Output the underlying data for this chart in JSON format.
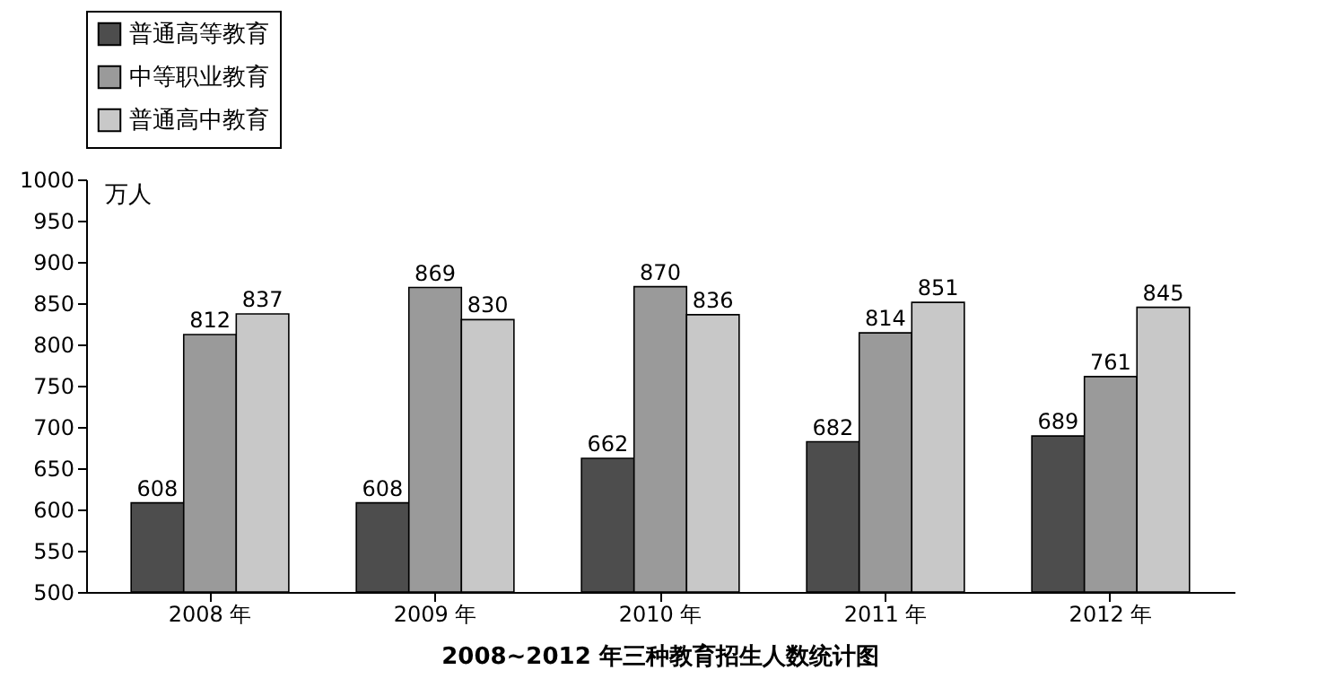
{
  "chart_data": {
    "type": "bar",
    "title": "2008~2012 年三种教育招生人数统计图",
    "ylabel": "万人",
    "categories": [
      "2008 年",
      "2009 年",
      "2010 年",
      "2011 年",
      "2012 年"
    ],
    "series": [
      {
        "name": "普通高等教育",
        "color": "#4d4d4d",
        "values": [
          608,
          608,
          662,
          682,
          689
        ]
      },
      {
        "name": "中等职业教育",
        "color": "#9a9a9a",
        "values": [
          812,
          869,
          870,
          814,
          761
        ]
      },
      {
        "name": "普通高中教育",
        "color": "#c8c8c8",
        "values": [
          837,
          830,
          836,
          851,
          845
        ]
      }
    ],
    "ylim": [
      500,
      1000
    ],
    "yticks": [
      500,
      550,
      600,
      650,
      700,
      750,
      800,
      850,
      900,
      950,
      1000
    ],
    "data_labels": true,
    "legend": "top",
    "grid": false
  }
}
